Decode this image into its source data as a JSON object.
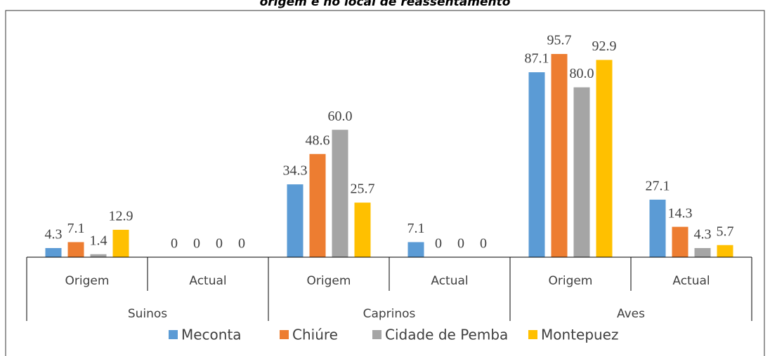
{
  "chart_data": {
    "type": "bar",
    "title": "origem e no local de reassentamento",
    "categories": [
      "Origem",
      "Actual",
      "Origem",
      "Actual",
      "Origem",
      "Actual"
    ],
    "groups": [
      "Suinos",
      "Caprinos",
      "Aves"
    ],
    "series": [
      {
        "name": "Meconta",
        "color": "#5b9bd5",
        "values": [
          4.3,
          0,
          34.3,
          7.1,
          87.1,
          27.1
        ],
        "value_labels": [
          "4.3",
          "0",
          "34.3",
          "7.1",
          "87.1",
          "27.1"
        ]
      },
      {
        "name": "Chiúre",
        "color": "#ed7d31",
        "values": [
          7.1,
          0,
          48.6,
          0,
          95.7,
          14.3
        ],
        "value_labels": [
          "7.1",
          "0",
          "48.6",
          "0",
          "95.7",
          "14.3"
        ]
      },
      {
        "name": "Cidade de Pemba",
        "color": "#a5a5a5",
        "values": [
          1.4,
          0,
          60.0,
          0,
          80.0,
          4.3
        ],
        "value_labels": [
          "1.4",
          "0",
          "60.0",
          "0",
          "80.0",
          "4.3"
        ]
      },
      {
        "name": "Montepuez",
        "color": "#ffc000",
        "values": [
          12.9,
          0,
          25.7,
          0,
          92.9,
          5.7
        ],
        "value_labels": [
          "12.9",
          "0",
          "25.7",
          "0",
          "92.9",
          "5.7"
        ]
      }
    ],
    "ylim": [
      0,
      100
    ]
  }
}
